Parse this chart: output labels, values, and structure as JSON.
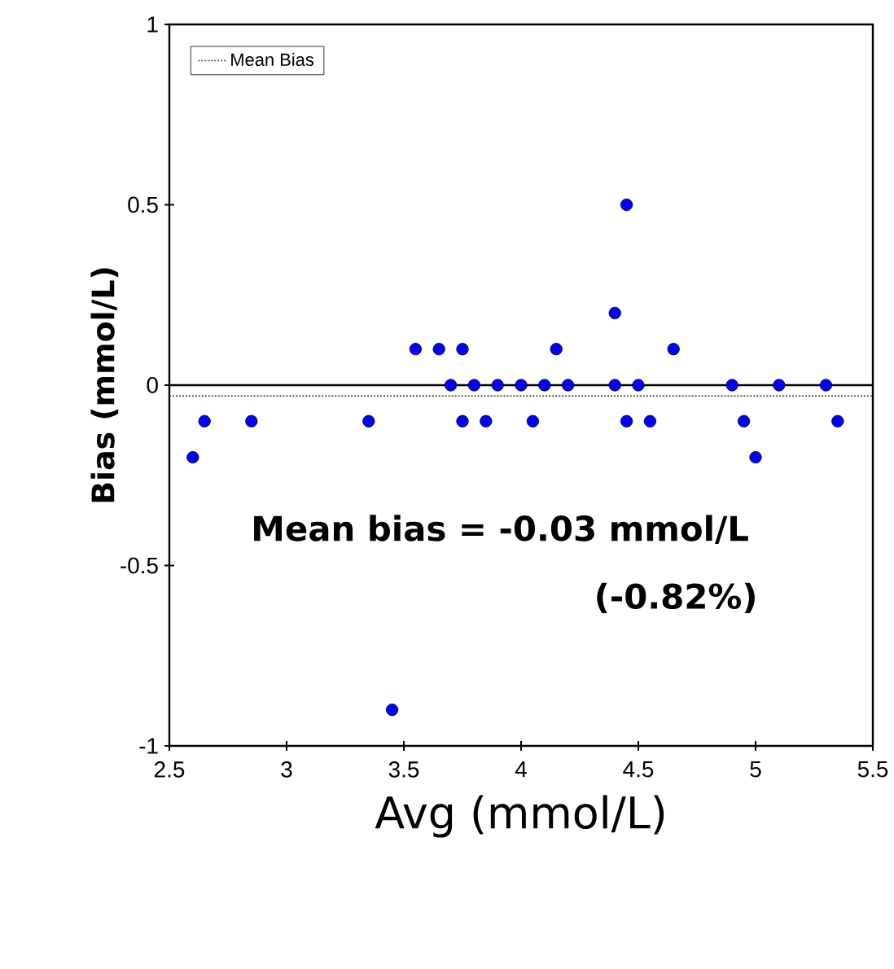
{
  "chart_data": {
    "type": "scatter",
    "xlabel": "Avg (mmol/L)",
    "ylabel": "Bias (mmol/L)",
    "xlim": [
      2.5,
      5.5
    ],
    "xticks": [
      2.5,
      3,
      3.5,
      4,
      4.5,
      5,
      5.5
    ],
    "ylim": [
      -1,
      1
    ],
    "yticks": [
      -1,
      -0.5,
      0,
      0.5,
      1
    ],
    "marker": "circle",
    "legend": "top left",
    "series": [
      {
        "color": "#0000ff",
        "x": [
          2.6,
          2.65,
          2.85,
          3.35,
          3.45,
          3.55,
          3.65,
          3.75,
          3.7,
          3.8,
          3.9,
          4.0,
          4.1,
          4.2,
          4.4,
          4.5,
          4.9,
          5.1,
          5.3,
          3.75,
          3.85,
          4.05,
          4.15,
          4.65,
          4.4,
          4.45,
          4.45,
          4.55,
          4.95,
          5.35,
          5.0
        ],
        "values": [
          -0.2,
          -0.1,
          -0.1,
          -0.1,
          -0.9,
          0.1,
          0.1,
          0.1,
          0,
          0,
          0,
          0,
          0,
          0,
          0,
          0,
          0,
          0,
          0,
          -0.1,
          -0.1,
          -0.1,
          0.1,
          0.1,
          0.2,
          0.5,
          -0.1,
          -0.1,
          -0.1,
          -0.1,
          -0.2
        ]
      }
    ],
    "ref_lines": [
      {
        "axis": "y",
        "value": 0,
        "color": "#000000",
        "line_style": "solid"
      },
      {
        "axis": "y",
        "value": -0.03,
        "label": "Mean Bias",
        "color": "#555555",
        "line_style": "dotted"
      }
    ],
    "annotations": [
      "Mean bias = -0.03 mmol/L",
      "(-0.82%)"
    ]
  }
}
